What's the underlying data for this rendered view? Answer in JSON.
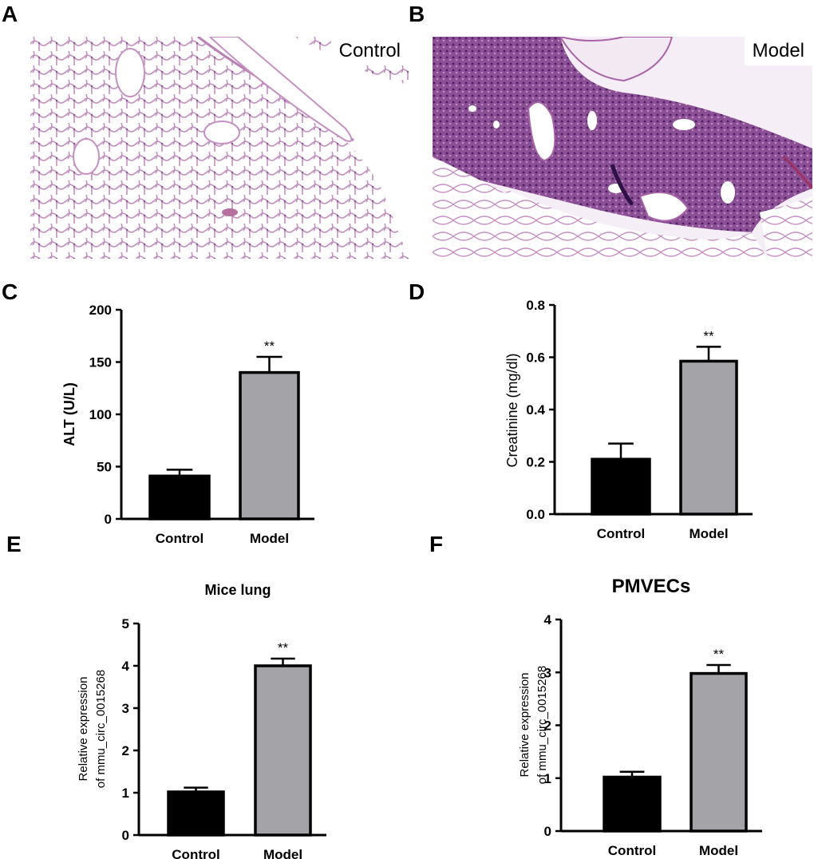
{
  "panels": {
    "a": {
      "letter": "A",
      "label": "Control"
    },
    "b": {
      "letter": "B",
      "label": "Model"
    },
    "c": {
      "letter": "C"
    },
    "d": {
      "letter": "D"
    },
    "e": {
      "letter": "E"
    },
    "f": {
      "letter": "F"
    }
  },
  "colors": {
    "control": "#000000",
    "model": "#a3a3a8",
    "tissue_light": "#c9a2c8",
    "tissue_dark": "#6b3a7c"
  },
  "chart_data": [
    {
      "id": "C",
      "type": "bar",
      "categories": [
        "Control",
        "Model"
      ],
      "values": [
        41,
        140
      ],
      "errors": [
        6,
        15
      ],
      "significance": [
        "",
        "**"
      ],
      "title": "",
      "ylabel": "ALT (U/L)",
      "ylim": [
        0,
        200
      ],
      "yticks": [
        "0",
        "50",
        "100",
        "150",
        "200"
      ],
      "ytick_values": [
        0,
        50,
        100,
        150,
        200
      ]
    },
    {
      "id": "D",
      "type": "bar",
      "categories": [
        "Control",
        "Model"
      ],
      "values": [
        0.21,
        0.585
      ],
      "errors": [
        0.06,
        0.055
      ],
      "significance": [
        "",
        "**"
      ],
      "title": "",
      "ylabel": "Creatinine (mg/dl)",
      "ylim": [
        0,
        0.8
      ],
      "yticks": [
        "0.0",
        "0.2",
        "0.4",
        "0.6",
        "0.8"
      ],
      "ytick_values": [
        0,
        0.2,
        0.4,
        0.6,
        0.8
      ]
    },
    {
      "id": "E",
      "type": "bar",
      "categories": [
        "Control",
        "Model"
      ],
      "values": [
        1.02,
        4.0
      ],
      "errors": [
        0.1,
        0.17
      ],
      "significance": [
        "",
        "**"
      ],
      "title": "Mice lung",
      "ylabel": [
        "Relative expression",
        "of mmu_circ_0015268"
      ],
      "ylim": [
        0,
        5
      ],
      "yticks": [
        "0",
        "1",
        "2",
        "3",
        "4",
        "5"
      ],
      "ytick_values": [
        0,
        1,
        2,
        3,
        4,
        5
      ]
    },
    {
      "id": "F",
      "type": "bar",
      "categories": [
        "Control",
        "Model"
      ],
      "values": [
        1.02,
        2.98
      ],
      "errors": [
        0.1,
        0.16
      ],
      "significance": [
        "",
        "**"
      ],
      "title": "PMVECs",
      "ylabel": [
        "Relative expression",
        "of mmu_circ_0015268"
      ],
      "ylim": [
        0,
        4
      ],
      "yticks": [
        "0",
        "1",
        "2",
        "3",
        "4"
      ],
      "ytick_values": [
        0,
        1,
        2,
        3,
        4
      ]
    }
  ]
}
